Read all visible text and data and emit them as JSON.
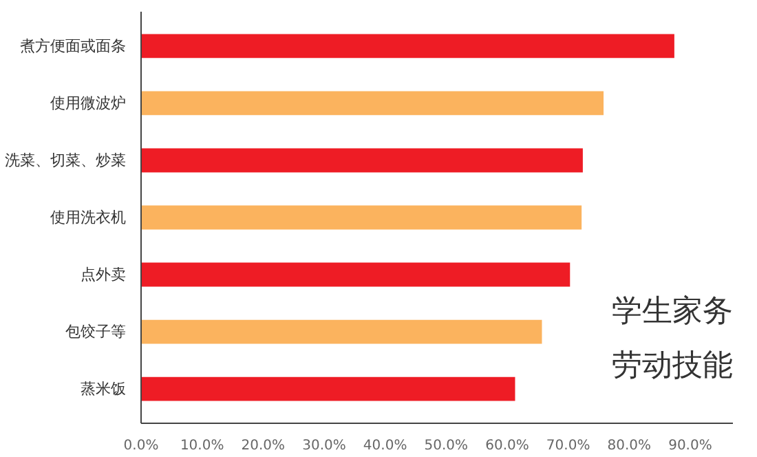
{
  "chart_data": {
    "type": "bar",
    "orientation": "horizontal",
    "categories": [
      "煮方便面或面条",
      "使用微波炉",
      "洗菜、切菜、炒菜",
      "使用洗衣机",
      "点外卖",
      "包饺子等",
      "蒸米饭"
    ],
    "values": [
      87.4,
      75.8,
      72.4,
      72.2,
      70.3,
      65.7,
      61.3
    ],
    "colors": [
      "#ee1c25",
      "#fbb35e",
      "#ee1c25",
      "#fbb35e",
      "#ee1c25",
      "#fbb35e",
      "#ee1c25"
    ],
    "xlim": [
      0,
      97
    ],
    "xticks": [
      {
        "value": 0,
        "label": "0.0%"
      },
      {
        "value": 10,
        "label": "10.0%"
      },
      {
        "value": 20,
        "label": "20.0%"
      },
      {
        "value": 30,
        "label": "30.0%"
      },
      {
        "value": 40,
        "label": "40.0%"
      },
      {
        "value": 50,
        "label": "50.0%"
      },
      {
        "value": 60,
        "label": "60.0%"
      },
      {
        "value": 70,
        "label": "70.0%"
      },
      {
        "value": 80,
        "label": "80.0%"
      },
      {
        "value": 90,
        "label": "90.0%"
      }
    ],
    "grid": false,
    "annotations": [
      "学生家务",
      "劳动技能"
    ]
  }
}
